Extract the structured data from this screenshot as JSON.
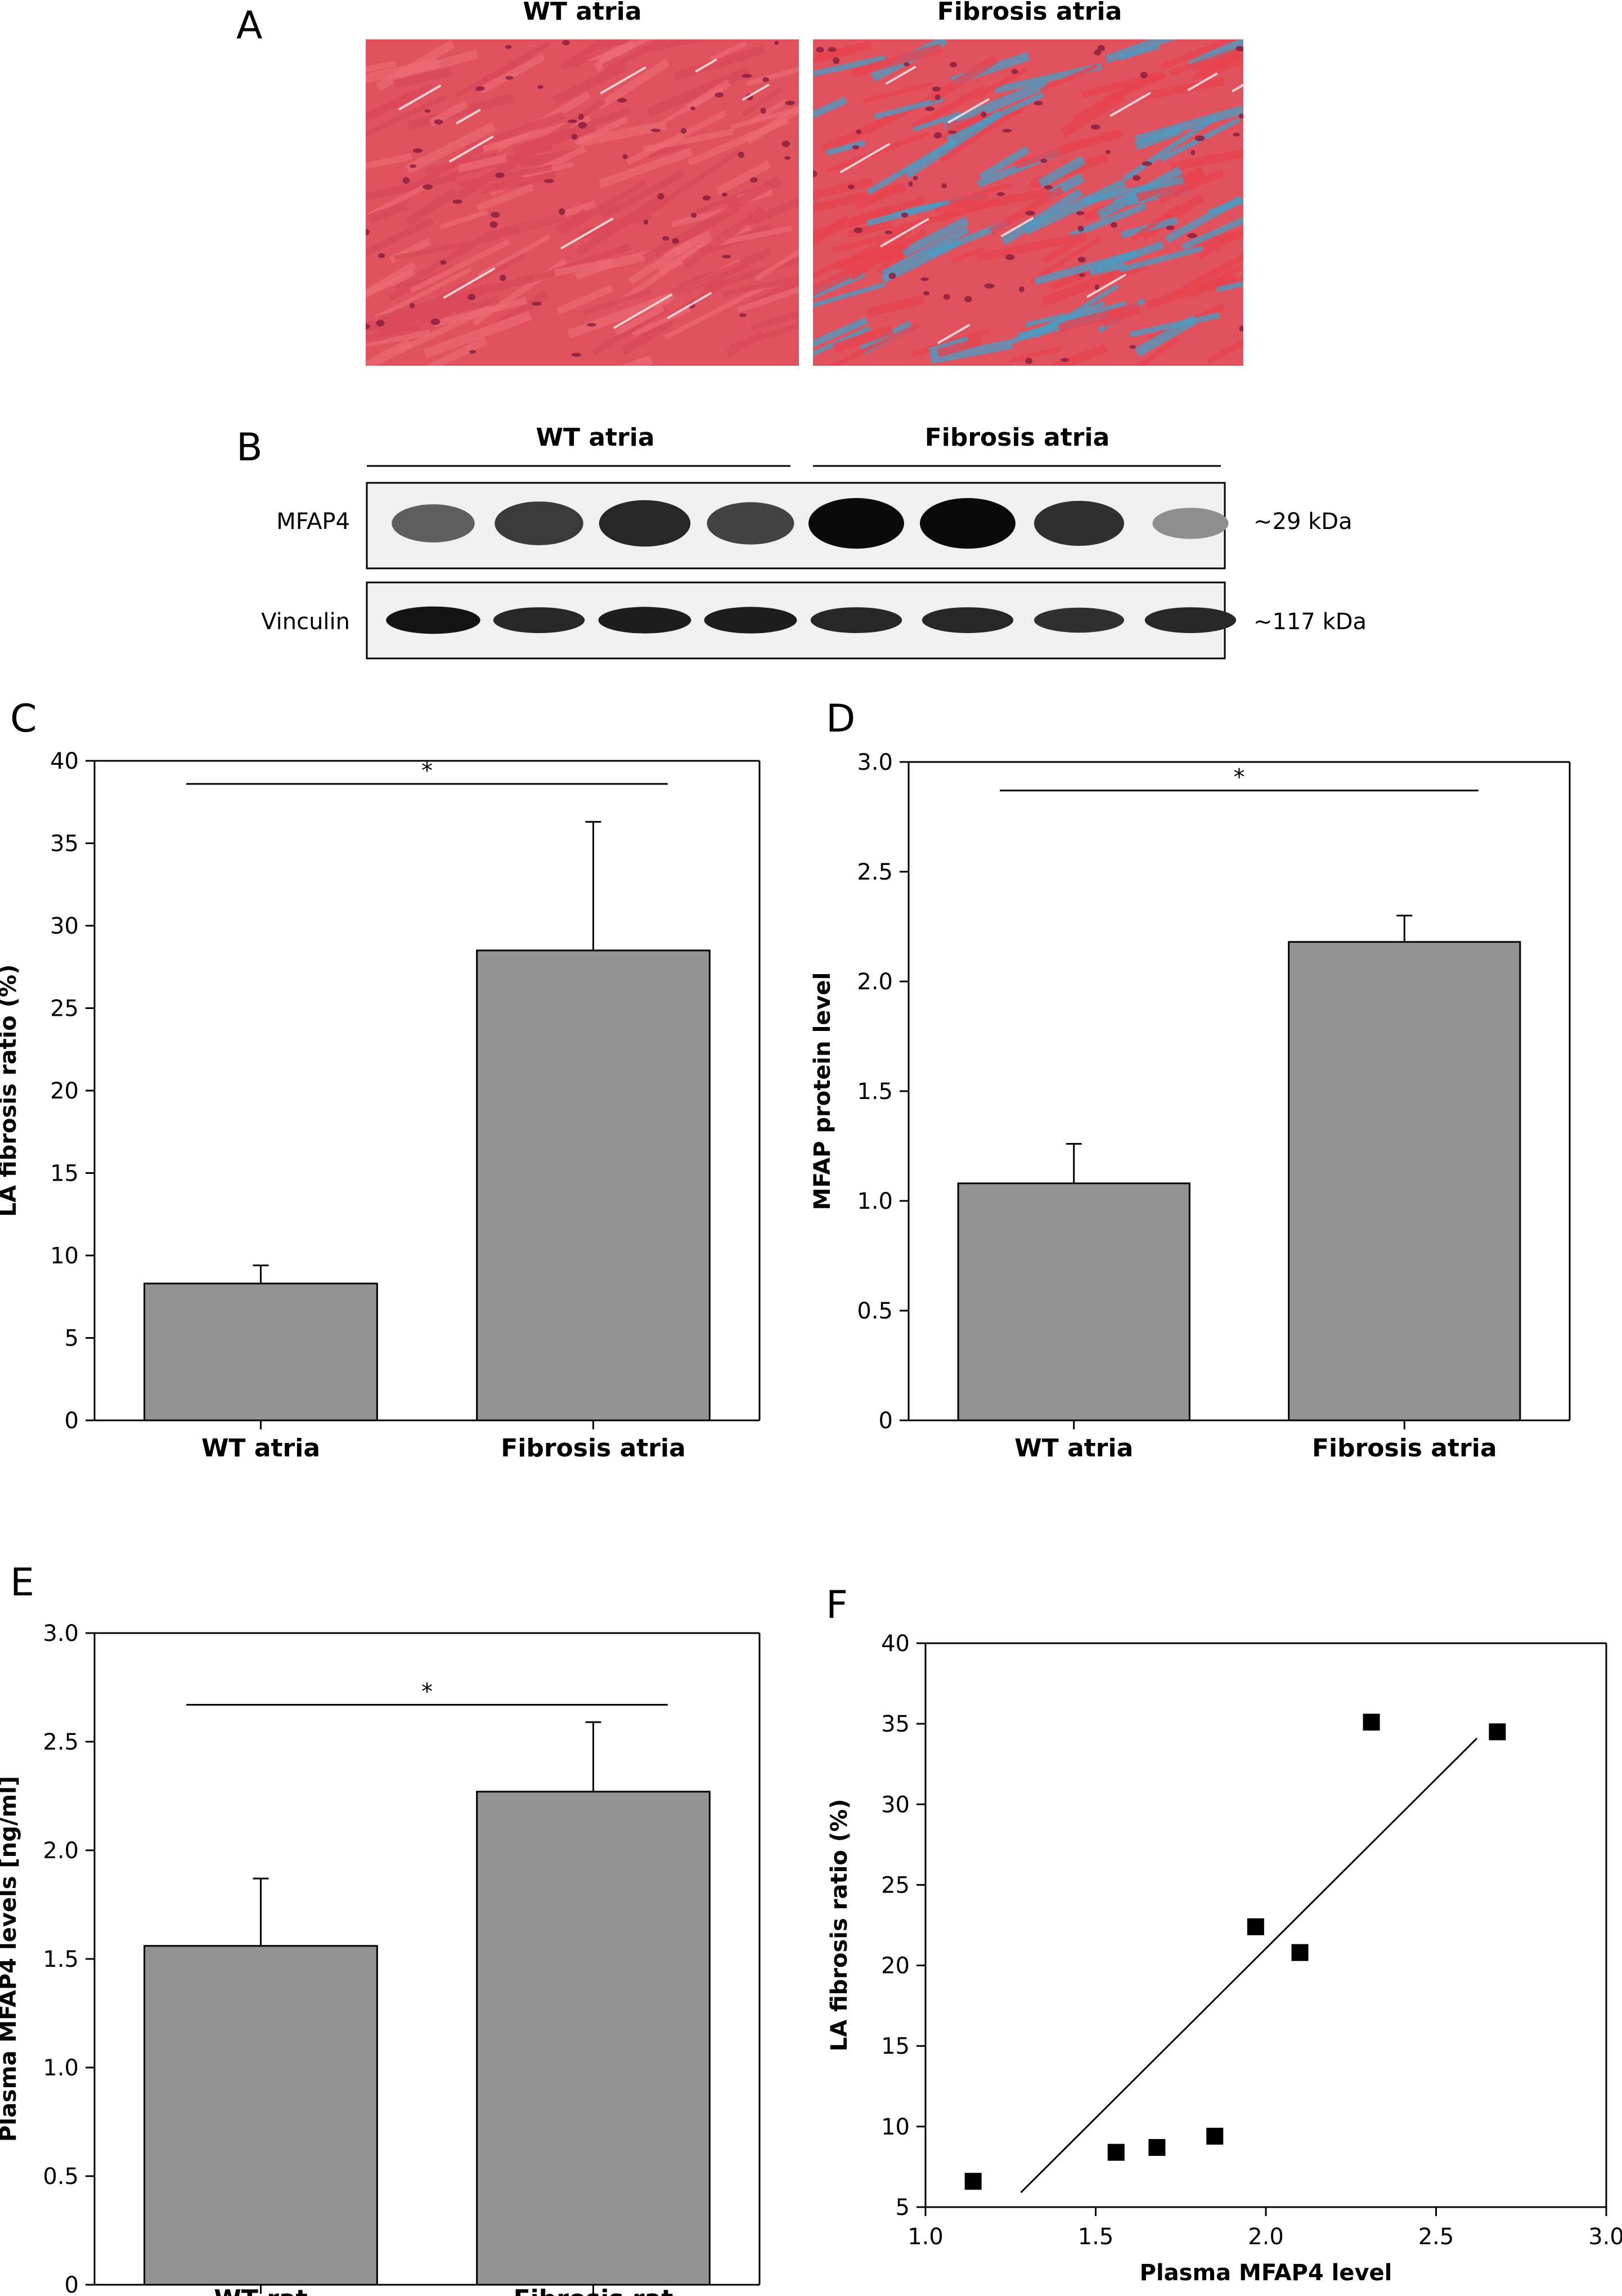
{
  "panel_a": {
    "letter": "A",
    "left_title": "WT atria",
    "right_title": "Fibrosis atria",
    "colors": {
      "myocyte": "#e0525e",
      "collagen": "#4a9cc4",
      "nucleus": "#8a2040",
      "background": "#e6e6e6"
    }
  },
  "panel_b": {
    "letter": "B",
    "group_left": "WT atria",
    "group_right": "Fibrosis atria",
    "rows": [
      {
        "label": "MFAP4",
        "size": "~29 kDa",
        "intensities": [
          0.55,
          0.75,
          0.85,
          0.7,
          1.0,
          1.0,
          0.8,
          0.3
        ]
      },
      {
        "label": "Vinculin",
        "size": "~117 kDa",
        "intensities": [
          0.95,
          0.85,
          0.9,
          0.9,
          0.85,
          0.85,
          0.8,
          0.85
        ]
      }
    ]
  },
  "chart_data": [
    {
      "panel": "C",
      "type": "bar",
      "categories": [
        "WT atria",
        "Fibrosis atria"
      ],
      "values": [
        8.3,
        28.5
      ],
      "errors": [
        1.1,
        7.8
      ],
      "ylabel": "LA fibrosis ratio (%)",
      "xlabel": "",
      "ylim": [
        0,
        40
      ],
      "yticks": [
        0,
        5,
        10,
        15,
        20,
        25,
        30,
        35,
        40
      ],
      "yticklabels": [
        "0",
        "5",
        "10",
        "15",
        "20",
        "25",
        "30",
        "35",
        "40"
      ],
      "significance": {
        "label": "*",
        "y": 38.6
      }
    },
    {
      "panel": "D",
      "type": "bar",
      "categories": [
        "WT atria",
        "Fibrosis atria"
      ],
      "values": [
        1.08,
        2.18
      ],
      "errors": [
        0.18,
        0.12
      ],
      "ylabel": "MFAP protein level",
      "xlabel": "",
      "ylim": [
        0,
        3
      ],
      "yticks": [
        0,
        0.5,
        1,
        1.5,
        2,
        2.5,
        3
      ],
      "yticklabels": [
        "0",
        "0.5",
        "1.0",
        "1.5",
        "2.0",
        "2.5",
        "3.0"
      ],
      "significance": {
        "label": "*",
        "y": 2.87
      }
    },
    {
      "panel": "E",
      "type": "bar",
      "categories": [
        "WT rat",
        "Fibrosis rat"
      ],
      "values": [
        1.56,
        2.27
      ],
      "errors": [
        0.31,
        0.32
      ],
      "ylabel": "Plasma MFAP4 levels [ng/ml]",
      "xlabel": "",
      "ylim": [
        0,
        3
      ],
      "yticks": [
        0,
        0.5,
        1,
        1.5,
        2,
        2.5,
        3
      ],
      "yticklabels": [
        "0",
        "0.5",
        "1.0",
        "1.5",
        "2.0",
        "2.5",
        "3.0"
      ],
      "significance": {
        "label": "*",
        "y": 2.67
      }
    },
    {
      "panel": "F",
      "type": "scatter",
      "x": [
        1.14,
        1.56,
        1.68,
        1.85,
        1.97,
        2.1,
        2.31,
        2.68
      ],
      "y": [
        6.6,
        8.4,
        8.7,
        9.4,
        22.4,
        20.8,
        35.1,
        34.5
      ],
      "fit_line": {
        "x": [
          1.28,
          2.62
        ],
        "y": [
          5.9,
          34.1
        ]
      },
      "xlabel": "Plasma MFAP4 level",
      "ylabel": "LA fibrosis ratio (%)",
      "xlim": [
        1,
        3
      ],
      "ylim": [
        5,
        40
      ],
      "xticks": [
        1,
        1.5,
        2,
        2.5,
        3
      ],
      "xticklabels": [
        "1.0",
        "1.5",
        "2.0",
        "2.5",
        "3.0"
      ],
      "yticks": [
        5,
        10,
        15,
        20,
        25,
        30,
        35,
        40
      ],
      "yticklabels": [
        "5",
        "10",
        "15",
        "20",
        "25",
        "30",
        "35",
        "40"
      ]
    }
  ]
}
